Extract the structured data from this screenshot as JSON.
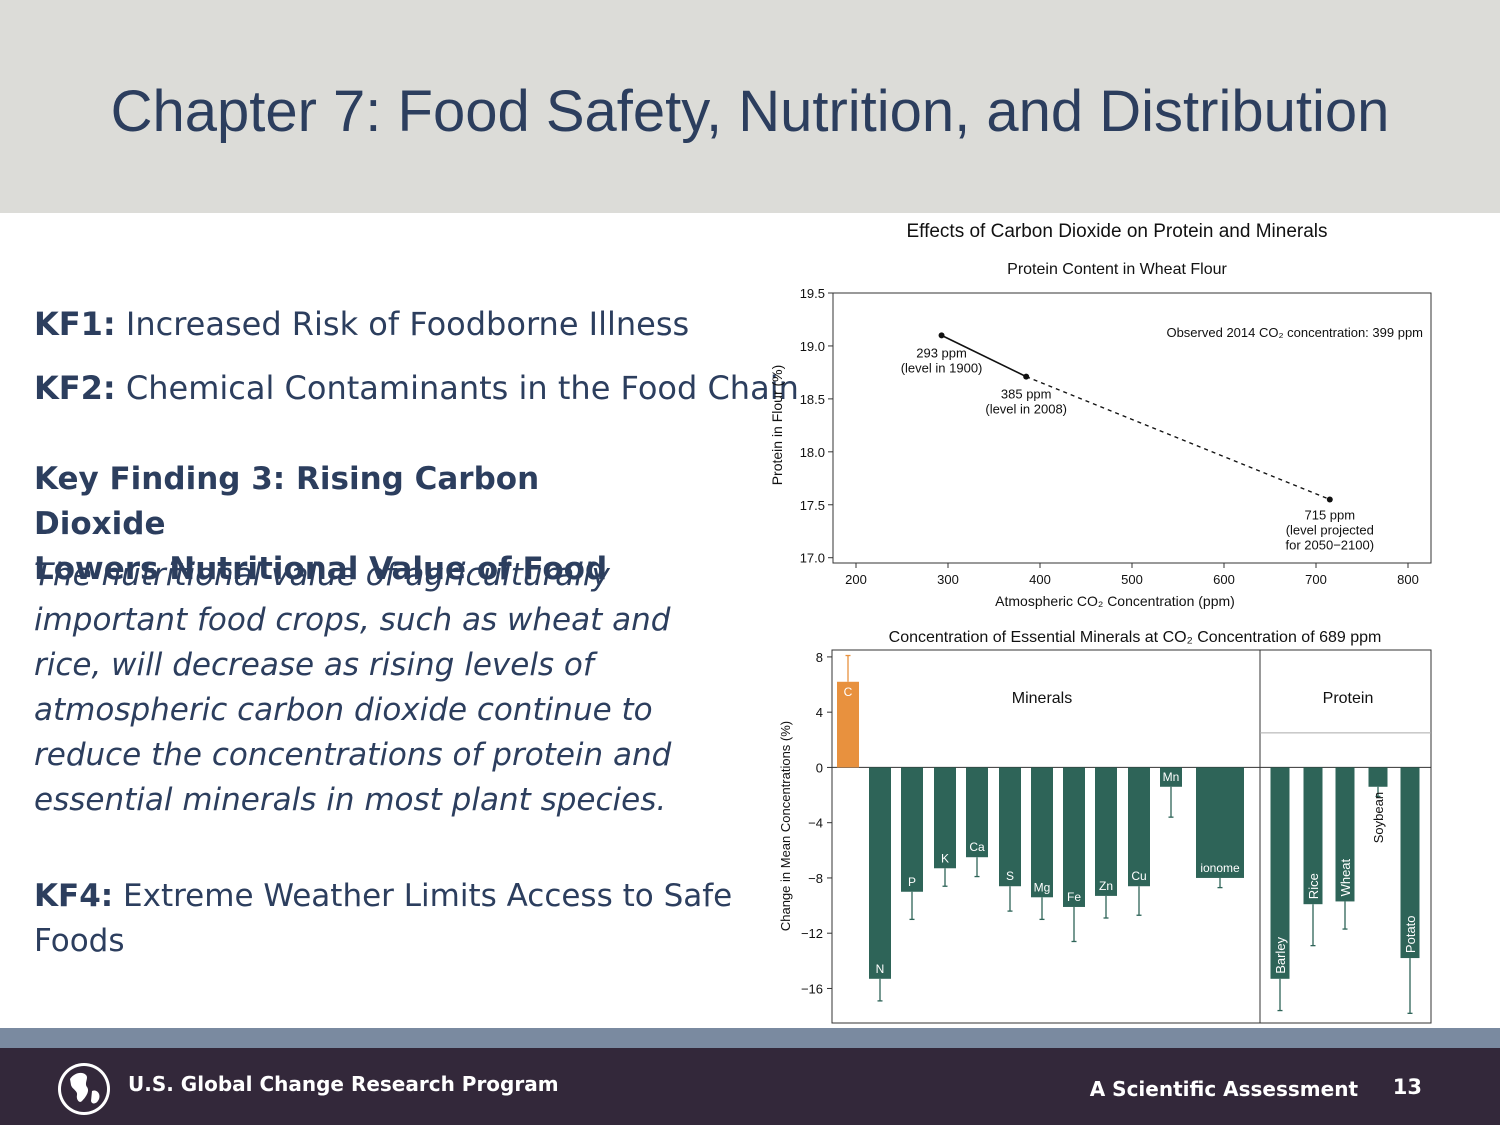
{
  "slide": {
    "title": "Chapter 7: Food Safety, Nutrition, and Distribution",
    "page_number": "13"
  },
  "key_findings": {
    "kf1": {
      "label": "KF1:",
      "text": "Increased Risk of Foodborne Illness"
    },
    "kf2": {
      "label": "KF2:",
      "text": "Chemical Contaminants in the Food Chain"
    },
    "kf3": {
      "heading_line1": "Key Finding 3: Rising Carbon Dioxide",
      "heading_line2": "Lowers Nutritional Value of Food",
      "body": "The nutritional value of agriculturally important food crops, such as wheat and rice, will decrease as rising levels of atmospheric carbon dioxide continue to reduce the concentrations of protein and essential minerals in most plant species."
    },
    "kf4": {
      "label": "KF4:",
      "text": "Extreme Weather Limits Access to Safe Foods"
    }
  },
  "footer": {
    "org": "U.S. Global Change Research Program",
    "tagline": "A Scientific Assessment"
  },
  "colors": {
    "title": "#2c3e5e",
    "header_bg": "#dcdcd8",
    "footer_bg": "#33283a",
    "footer_stripe": "#7a8aa0",
    "bar_teal": "#2e6458",
    "bar_orange": "#e8913e"
  },
  "figure_title": "Effects of Carbon Dioxide on Protein and Minerals",
  "chart_data": [
    {
      "type": "scatter",
      "title": "Protein Content in Wheat Flour",
      "xlabel": "Atmospheric CO₂ Concentration (ppm)",
      "ylabel": "Protein in Flour (%)",
      "xlim": [
        175,
        825
      ],
      "ylim": [
        16.95,
        19.5
      ],
      "xticks": [
        "200",
        "300",
        "400",
        "500",
        "600",
        "700",
        "800"
      ],
      "yticks": [
        "17.0",
        "17.5",
        "18.0",
        "18.5",
        "19.0",
        "19.5"
      ],
      "points": [
        {
          "x": 293,
          "y": 19.1,
          "label1": "293 ppm",
          "label2": "(level in 1900)"
        },
        {
          "x": 385,
          "y": 18.71,
          "label1": "385 ppm",
          "label2": "(level in 2008)"
        },
        {
          "x": 715,
          "y": 17.55,
          "label1": "715 ppm",
          "label2": "(level projected",
          "label3": "for 2050−2100)"
        }
      ],
      "annotation": "Observed 2014 CO₂ concentration: 399 ppm"
    },
    {
      "type": "bar",
      "title": "Concentration of Essential Minerals at CO₂ Concentration of 689 ppm",
      "ylabel": "Change in Mean Concentrations (%)",
      "ylim": [
        -18.5,
        8.5
      ],
      "yticks": [
        "8",
        "4",
        "0",
        "−4",
        "−8",
        "−12",
        "−16"
      ],
      "groups": [
        "Minerals",
        "Protein"
      ],
      "categories": [
        "C",
        "N",
        "P",
        "K",
        "Ca",
        "S",
        "Mg",
        "Fe",
        "Zn",
        "Cu",
        "Mn",
        "ionome",
        "Barley",
        "Rice",
        "Wheat",
        "Soybean",
        "Potato"
      ],
      "values": [
        6.2,
        -15.3,
        -9.0,
        -7.3,
        -6.5,
        -8.6,
        -9.4,
        -10.1,
        -9.3,
        -8.6,
        -1.4,
        -8.0,
        -15.3,
        -9.9,
        -9.7,
        -1.4,
        -13.8
      ],
      "errors": [
        1.9,
        1.6,
        2.0,
        1.3,
        1.4,
        1.8,
        1.6,
        2.5,
        1.6,
        2.1,
        2.2,
        0.7,
        2.3,
        3.0,
        2.0,
        0.7,
        4.0
      ]
    }
  ]
}
